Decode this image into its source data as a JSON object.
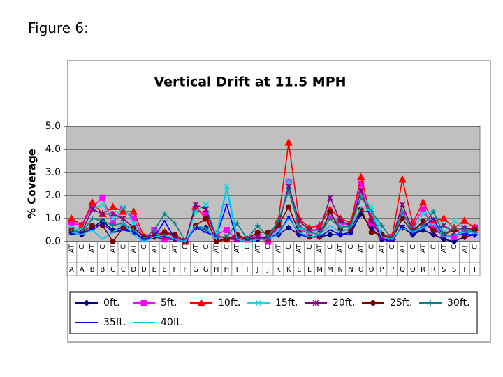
{
  "page_title": "Figure 6:",
  "chart_data": {
    "type": "line",
    "title": "Vertical Drift at 11.5 MPH",
    "y_label": "% Coverage",
    "categories": [
      "AT",
      "C",
      "AT",
      "C",
      "AT",
      "C",
      "AT",
      "C",
      "AT",
      "C",
      "AT",
      "C",
      "AT",
      "C",
      "AT",
      "C",
      "AT",
      "C",
      "AT",
      "C",
      "AT",
      "C",
      "AT",
      "C",
      "AT",
      "C",
      "AT",
      "C",
      "AT",
      "C",
      "AT",
      "C",
      "AT",
      "C",
      "AT",
      "C",
      "AT",
      "C",
      "AT",
      "C"
    ],
    "category_groups": [
      "A",
      "A",
      "B",
      "B",
      "C",
      "C",
      "D",
      "D",
      "E",
      "E",
      "F",
      "F",
      "G",
      "G",
      "H",
      "H",
      "I",
      "I",
      "J",
      "J",
      "K",
      "K",
      "L",
      "L",
      "M",
      "M",
      "N",
      "N",
      "O",
      "O",
      "P",
      "P",
      "Q",
      "Q",
      "R",
      "R",
      "S",
      "S",
      "T",
      "T"
    ],
    "ylim": [
      0,
      5
    ],
    "yticks": [
      {
        "value": 0,
        "label": "0.0"
      },
      {
        "value": 1,
        "label": "1.0"
      },
      {
        "value": 2,
        "label": "2.0"
      },
      {
        "value": 3,
        "label": "3.0"
      },
      {
        "value": 4,
        "label": "4.0"
      },
      {
        "value": 5,
        "label": "5.0"
      }
    ],
    "grid": true,
    "plot_background": "#c0c0c0",
    "series": [
      {
        "name": "0ft.",
        "color": "#000080",
        "marker": "diamond",
        "values": [
          0.4,
          0.3,
          0.6,
          0.9,
          0.5,
          0.6,
          0.4,
          0.1,
          0.2,
          0.1,
          0.1,
          0.0,
          0.6,
          0.6,
          0.1,
          0.1,
          0.1,
          0.1,
          0.1,
          0.2,
          0.3,
          0.6,
          0.3,
          0.2,
          0.2,
          0.3,
          0.3,
          0.4,
          1.2,
          0.6,
          0.1,
          0.1,
          0.6,
          0.3,
          0.5,
          0.3,
          0.1,
          0.0,
          0.2,
          0.3
        ]
      },
      {
        "name": "5ft.",
        "color": "#ff00ff",
        "marker": "square",
        "values": [
          0.8,
          0.7,
          1.5,
          1.9,
          0.8,
          1.4,
          1.0,
          0.1,
          0.5,
          0.1,
          0.2,
          0.0,
          1.4,
          1.2,
          0.3,
          0.5,
          0.1,
          0.1,
          0.2,
          0.0,
          0.6,
          2.6,
          0.5,
          0.4,
          0.6,
          1.1,
          0.8,
          0.7,
          2.5,
          0.8,
          0.2,
          0.2,
          1.2,
          0.7,
          1.4,
          0.6,
          0.3,
          0.2,
          0.5,
          0.6
        ]
      },
      {
        "name": "10ft.",
        "color": "#ff0000",
        "marker": "triangle",
        "values": [
          1.0,
          0.7,
          1.7,
          1.2,
          1.5,
          1.3,
          1.3,
          0.2,
          0.3,
          0.4,
          0.2,
          0.0,
          1.5,
          1.0,
          0.3,
          0.1,
          0.2,
          0.1,
          0.2,
          0.1,
          0.9,
          4.3,
          1.0,
          0.6,
          0.7,
          1.4,
          1.0,
          0.8,
          2.8,
          1.0,
          0.3,
          0.2,
          2.7,
          0.8,
          1.7,
          0.9,
          1.0,
          0.6,
          0.9,
          0.6
        ]
      },
      {
        "name": "15ft.",
        "color": "#00e0e0",
        "marker": "x",
        "values": [
          0.6,
          0.5,
          1.4,
          1.6,
          1.0,
          1.5,
          0.8,
          0.1,
          0.3,
          0.3,
          0.1,
          0.0,
          1.3,
          1.6,
          0.3,
          2.4,
          0.3,
          0.1,
          0.2,
          0.1,
          0.5,
          2.6,
          0.6,
          0.4,
          0.5,
          1.2,
          0.7,
          0.6,
          2.0,
          1.5,
          0.3,
          0.1,
          1.2,
          0.5,
          1.2,
          1.3,
          0.4,
          0.9,
          0.6,
          0.4
        ]
      },
      {
        "name": "20ft.",
        "color": "#800080",
        "marker": "star",
        "values": [
          0.5,
          0.4,
          1.4,
          1.2,
          1.2,
          1.0,
          0.6,
          0.2,
          0.3,
          0.2,
          0.1,
          0.0,
          1.6,
          1.4,
          0.2,
          0.2,
          0.1,
          0.1,
          0.2,
          0.1,
          0.7,
          2.4,
          0.9,
          0.5,
          0.5,
          1.9,
          0.9,
          0.7,
          2.2,
          0.9,
          0.2,
          0.1,
          1.6,
          0.5,
          0.8,
          0.5,
          0.7,
          0.4,
          0.6,
          0.5
        ]
      },
      {
        "name": "25ft.",
        "color": "#800000",
        "marker": "circle",
        "values": [
          0.5,
          0.4,
          0.7,
          0.7,
          0.0,
          0.6,
          0.6,
          0.2,
          0.2,
          0.4,
          0.3,
          0.0,
          0.7,
          1.0,
          0.0,
          0.1,
          0.3,
          0.1,
          0.4,
          0.4,
          0.7,
          1.5,
          0.4,
          0.2,
          0.2,
          1.3,
          0.5,
          0.5,
          1.4,
          0.4,
          0.3,
          0.1,
          1.0,
          0.4,
          0.9,
          0.5,
          0.3,
          0.5,
          0.3,
          0.5
        ]
      },
      {
        "name": "30ft.",
        "color": "#008080",
        "marker": "plus",
        "values": [
          0.5,
          0.4,
          1.0,
          0.9,
          0.7,
          0.8,
          0.5,
          0.1,
          0.5,
          1.2,
          0.8,
          0.0,
          0.6,
          0.5,
          0.2,
          0.2,
          0.8,
          0.1,
          0.7,
          0.2,
          0.9,
          2.2,
          0.7,
          0.4,
          0.3,
          1.0,
          0.6,
          0.7,
          1.9,
          1.3,
          0.7,
          0.1,
          1.3,
          0.4,
          0.7,
          1.3,
          0.3,
          0.6,
          0.5,
          0.4
        ]
      },
      {
        "name": "35ft.",
        "color": "#0000ff",
        "marker": "dash",
        "values": [
          0.3,
          0.4,
          0.5,
          0.8,
          0.4,
          0.5,
          0.4,
          0.1,
          0.2,
          0.9,
          0.1,
          0.0,
          0.6,
          0.4,
          0.2,
          1.6,
          0.1,
          0.1,
          0.1,
          0.1,
          0.3,
          1.1,
          0.3,
          0.2,
          0.2,
          0.5,
          0.3,
          0.3,
          1.3,
          1.3,
          0.1,
          0.0,
          0.7,
          0.3,
          0.6,
          1.0,
          0.2,
          0.3,
          0.3,
          0.3
        ]
      },
      {
        "name": "40ft.",
        "color": "#00bfff",
        "marker": "none",
        "values": [
          0.4,
          0.3,
          0.5,
          0.1,
          0.4,
          0.8,
          0.3,
          0.0,
          0.2,
          0.3,
          0.1,
          0.0,
          0.7,
          0.6,
          0.1,
          2.3,
          0.1,
          0.0,
          0.1,
          0.1,
          0.3,
          1.0,
          0.4,
          0.2,
          0.3,
          0.7,
          0.4,
          0.6,
          1.5,
          1.3,
          0.2,
          0.1,
          0.6,
          0.4,
          0.6,
          0.8,
          0.2,
          0.3,
          0.4,
          0.4
        ]
      }
    ]
  }
}
